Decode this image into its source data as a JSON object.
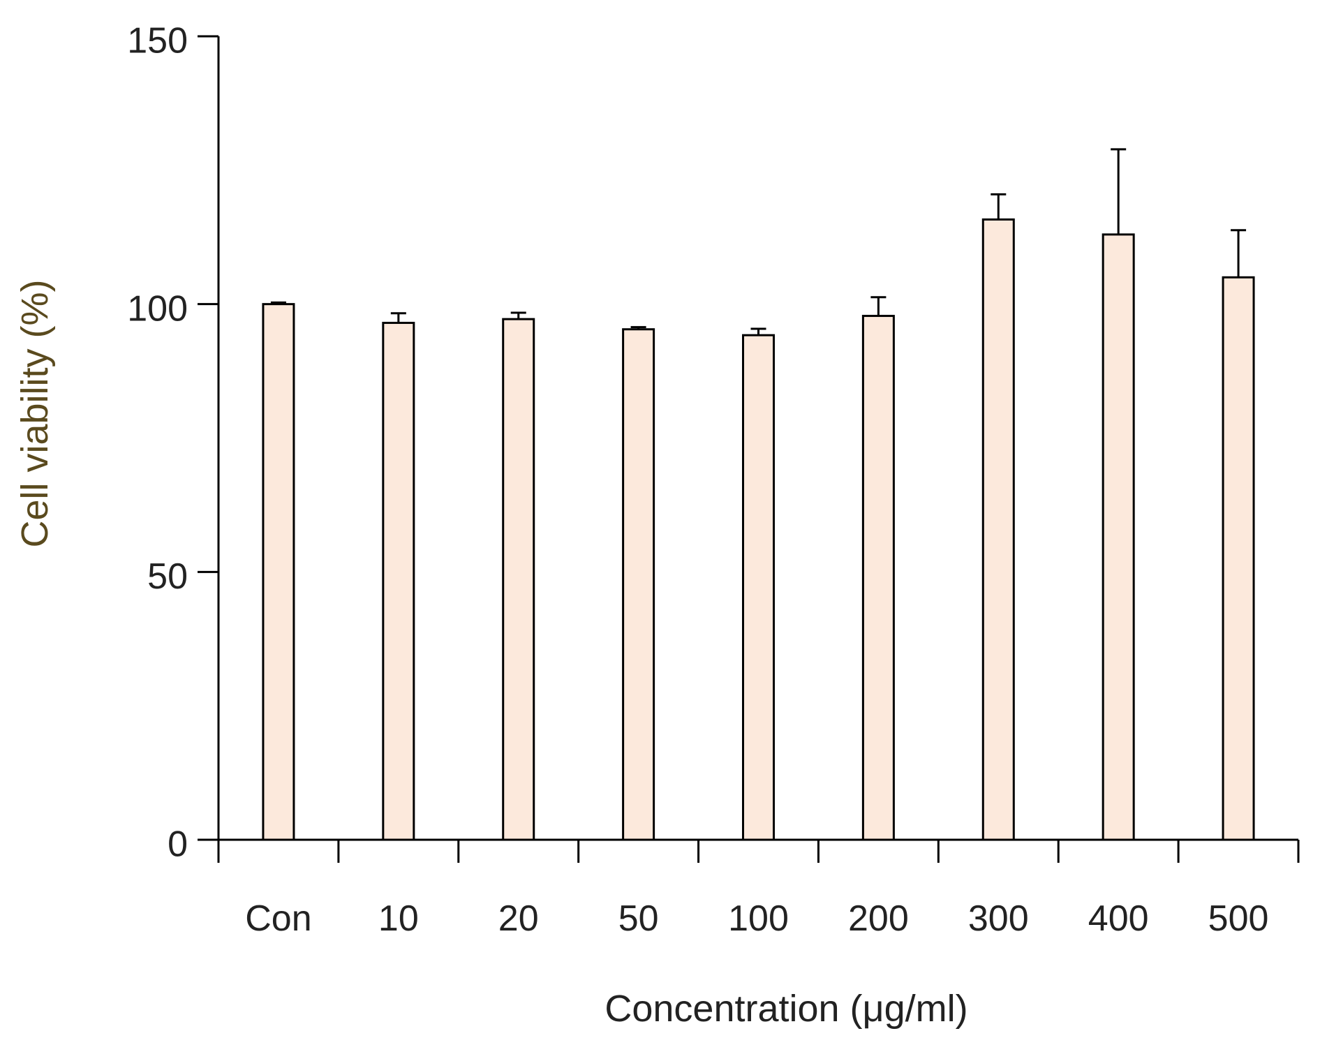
{
  "chart_data": {
    "type": "bar",
    "title": "",
    "xlabel": "Concentration (μg/ml)",
    "ylabel": "Cell viability  (%)",
    "categories": [
      "Con",
      "10",
      "20",
      "50",
      "100",
      "200",
      "300",
      "400",
      "500"
    ],
    "values": [
      100,
      96.5,
      97.2,
      95.3,
      94.2,
      97.8,
      115.8,
      113,
      105
    ],
    "errors": [
      0.3,
      1.8,
      1.2,
      0.4,
      1.2,
      3.5,
      4.7,
      15.9,
      8.8
    ],
    "ylim": [
      0,
      150
    ],
    "yticks": [
      0,
      50,
      100,
      150
    ],
    "grid": false,
    "legend": "none",
    "colors": {
      "bar_fill": "#fce9dc",
      "bar_stroke": "#000000",
      "ylabel_color": "#5a4a1e"
    }
  }
}
